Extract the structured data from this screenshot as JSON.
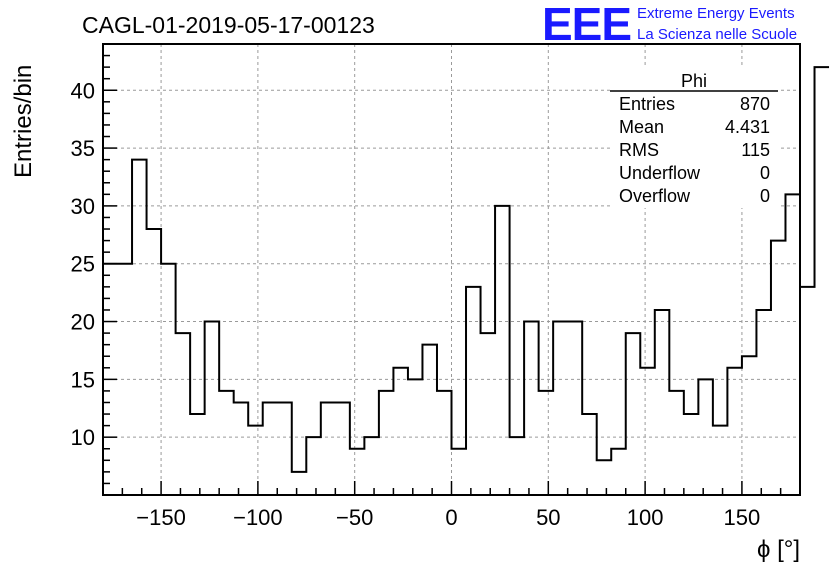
{
  "title": "CAGL-01-2019-05-17-00123",
  "logo": {
    "mark": "EEE",
    "line1": "Extreme Energy Events",
    "line2": "La Scienza nelle Scuole",
    "color": "#1a1aff"
  },
  "stats": {
    "name": "Phi",
    "rows": [
      {
        "label": "Entries",
        "value": "870"
      },
      {
        "label": "Mean",
        "value": "4.431"
      },
      {
        "label": "RMS",
        "value": "115"
      },
      {
        "label": "Underflow",
        "value": "0"
      },
      {
        "label": "Overflow",
        "value": "0"
      }
    ]
  },
  "chart_data": {
    "type": "histogram",
    "xlabel": "ϕ [°]",
    "ylabel": "Entries/bin",
    "xlim": [
      -180,
      180
    ],
    "ylim": [
      5,
      44
    ],
    "grid": true,
    "x_ticks": [
      -150,
      -100,
      -50,
      0,
      50,
      100,
      150
    ],
    "x_tick_labels": [
      "−150",
      "−100",
      "−50",
      "0",
      "50",
      "100",
      "150"
    ],
    "y_ticks": [
      10,
      15,
      20,
      25,
      30,
      35,
      40
    ],
    "bin_edges_start": -180,
    "bin_width": 7.5,
    "values": [
      25,
      25,
      34,
      28,
      25,
      19,
      12,
      20,
      14,
      13,
      11,
      13,
      13,
      7,
      10,
      13,
      13,
      9,
      10,
      14,
      16,
      15,
      18,
      14,
      9,
      23,
      19,
      30,
      10,
      20,
      14,
      20,
      20,
      12,
      8,
      9,
      19,
      16,
      21,
      14,
      12,
      15,
      11,
      16,
      17,
      21,
      27,
      31,
      23,
      42
    ]
  }
}
